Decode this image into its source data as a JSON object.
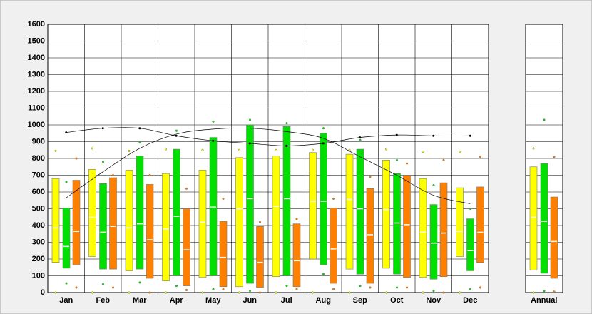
{
  "chart_data": {
    "type": "box",
    "categories": [
      "Jan",
      "Feb",
      "Mar",
      "Apr",
      "May",
      "Jun",
      "Jul",
      "Aug",
      "Sep",
      "Oct",
      "Nov",
      "Dec",
      "Annual"
    ],
    "ylim": [
      0,
      1600
    ],
    "yticks": [
      0,
      100,
      200,
      300,
      400,
      500,
      600,
      700,
      800,
      900,
      1000,
      1100,
      1200,
      1300,
      1400,
      1500,
      1600
    ],
    "grid": true,
    "series": [
      {
        "color": "#ffff00",
        "low": [
          180,
          215,
          130,
          70,
          90,
          35,
          95,
          200,
          140,
          145,
          90,
          215,
          135
        ],
        "high": [
          680,
          735,
          730,
          710,
          730,
          805,
          815,
          835,
          825,
          790,
          680,
          625,
          750
        ],
        "median": [
          385,
          450,
          385,
          380,
          420,
          500,
          515,
          545,
          555,
          495,
          360,
          365,
          450
        ],
        "max": [
          845,
          860,
          845,
          855,
          850,
          850,
          850,
          850,
          850,
          855,
          840,
          840,
          860
        ],
        "min": [
          0,
          0,
          0,
          0,
          0,
          0,
          0,
          0,
          0,
          0,
          0,
          0,
          0
        ]
      },
      {
        "color": "#00e000",
        "low": [
          145,
          140,
          140,
          100,
          100,
          55,
          100,
          165,
          110,
          110,
          80,
          130,
          115
        ],
        "high": [
          505,
          650,
          815,
          855,
          925,
          1000,
          990,
          950,
          855,
          710,
          525,
          440,
          770
        ],
        "median": [
          275,
          360,
          410,
          455,
          510,
          560,
          560,
          545,
          500,
          415,
          295,
          250,
          425
        ],
        "max": [
          660,
          780,
          895,
          965,
          1020,
          1030,
          1010,
          980,
          910,
          790,
          640,
          500,
          1030
        ],
        "min": [
          55,
          50,
          60,
          40,
          20,
          10,
          40,
          110,
          40,
          30,
          10,
          20,
          10
        ]
      },
      {
        "color": "#ff8000",
        "low": [
          165,
          140,
          85,
          40,
          35,
          30,
          35,
          55,
          55,
          90,
          95,
          180,
          85
        ],
        "high": [
          670,
          685,
          645,
          500,
          425,
          395,
          410,
          505,
          620,
          700,
          655,
          630,
          570
        ],
        "median": [
          365,
          395,
          315,
          255,
          210,
          180,
          190,
          260,
          345,
          405,
          355,
          360,
          305
        ],
        "max": [
          800,
          700,
          700,
          620,
          560,
          420,
          440,
          560,
          690,
          770,
          790,
          810,
          810
        ],
        "min": [
          30,
          30,
          0,
          15,
          20,
          0,
          20,
          20,
          30,
          30,
          0,
          30,
          5
        ]
      }
    ],
    "lines": [
      {
        "color": "#000000",
        "markers": true,
        "values": [
          955,
          980,
          980,
          935,
          905,
          890,
          875,
          890,
          925,
          940,
          935,
          935
        ]
      },
      {
        "color": "#000000",
        "markers": false,
        "values": [
          565,
          720,
          860,
          945,
          975,
          980,
          960,
          920,
          810,
          700,
          580,
          530
        ]
      }
    ]
  }
}
